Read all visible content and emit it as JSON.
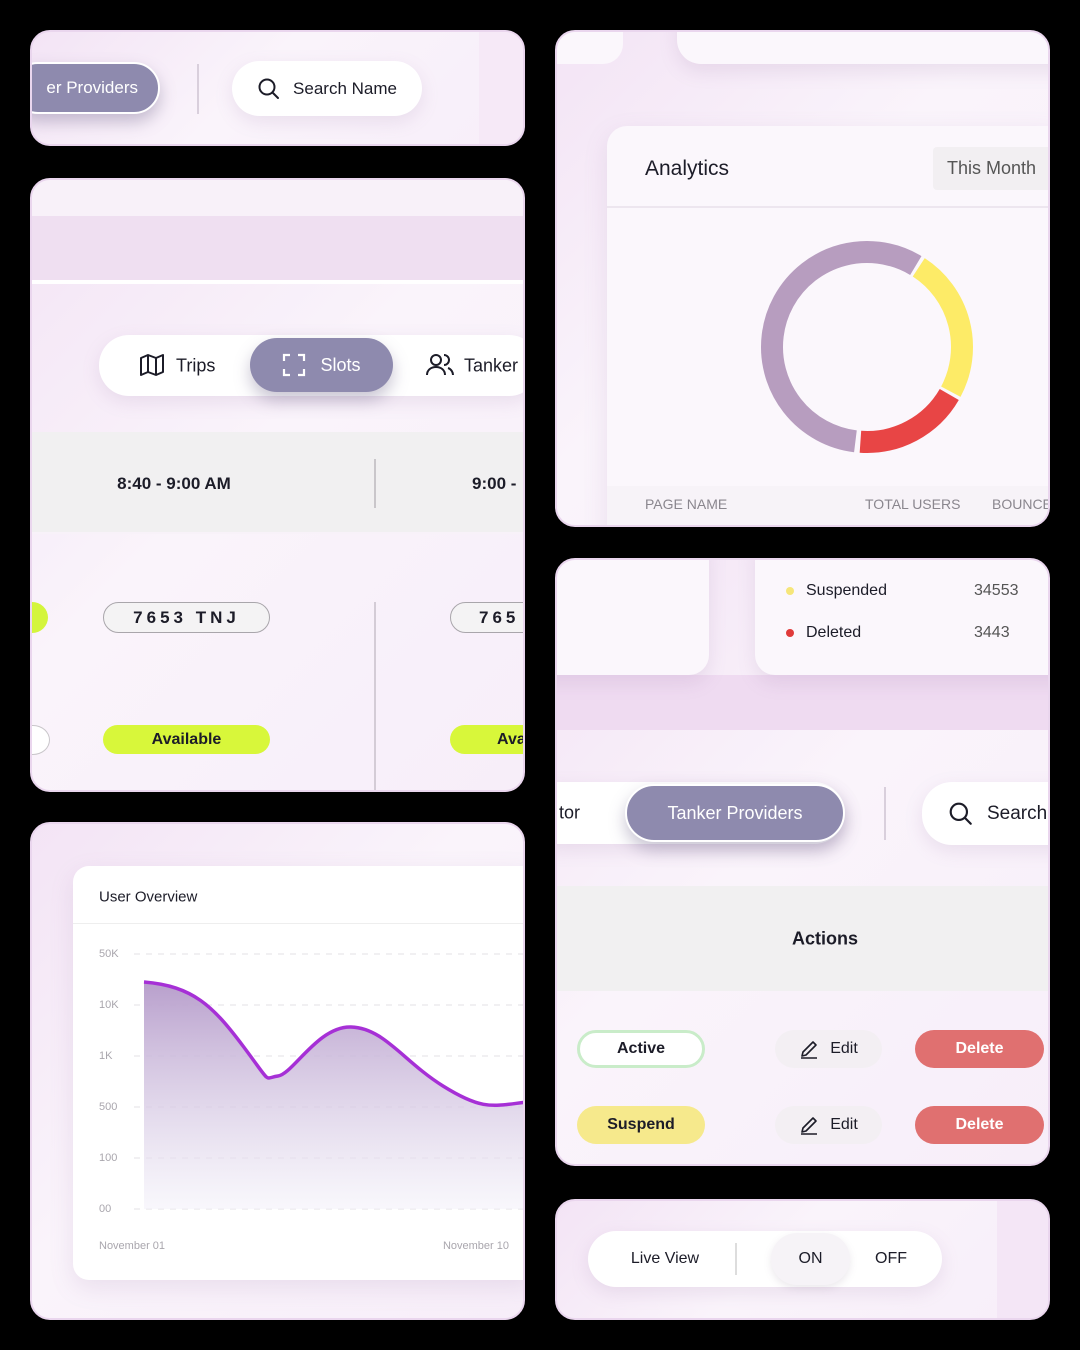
{
  "provider_search": {
    "tab": "er Providers",
    "search": "Search Name"
  },
  "slots": {
    "tabs": [
      "Trips",
      "Slots",
      "Tanker"
    ],
    "times": [
      "8:40 - 9:00 AM",
      "9:00 -"
    ],
    "plates": [
      "7653 TNJ",
      "765"
    ],
    "status": [
      "Available",
      "Ava"
    ]
  },
  "user_overview": {
    "title": "User Overview",
    "yticks": [
      "50K",
      "10K",
      "1K",
      "500",
      "100",
      "00"
    ],
    "x_start": "November 01",
    "x_end": "November 10"
  },
  "analytics": {
    "title": "Analytics",
    "period": "This Month",
    "columns": [
      "PAGE NAME",
      "TOTAL USERS",
      "BOUNCE"
    ]
  },
  "legend": [
    {
      "name": "Suspended",
      "value": 34553
    },
    {
      "name": "Deleted",
      "value": 3443
    }
  ],
  "providers": {
    "tabs": [
      "tor",
      "Tanker Providers"
    ],
    "search": "Search",
    "header": "Actions",
    "rows": [
      [
        "Active",
        "Edit",
        "Delete"
      ],
      [
        "Suspend",
        "Edit",
        "Delete"
      ]
    ]
  },
  "live_view": {
    "label": "Live View",
    "options": [
      "ON",
      "OFF"
    ]
  }
}
